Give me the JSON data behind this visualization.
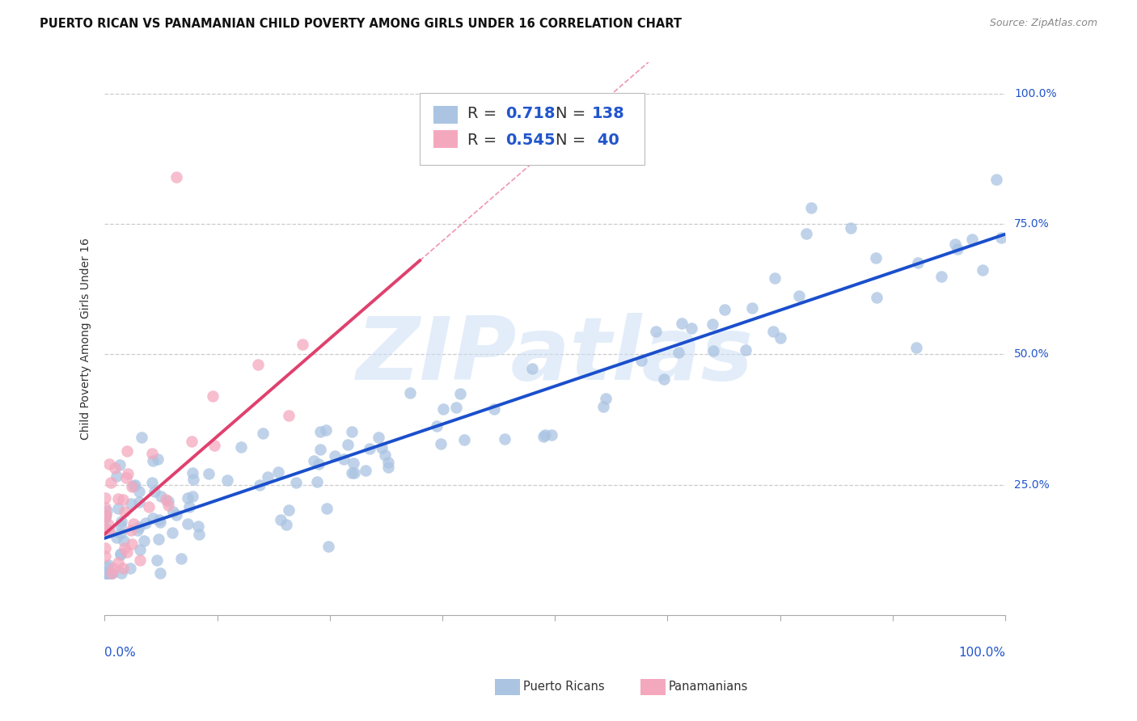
{
  "title": "PUERTO RICAN VS PANAMANIAN CHILD POVERTY AMONG GIRLS UNDER 16 CORRELATION CHART",
  "source": "Source: ZipAtlas.com",
  "ylabel": "Child Poverty Among Girls Under 16",
  "watermark": "ZIPatlas",
  "blue_R": 0.718,
  "blue_N": 138,
  "pink_R": 0.545,
  "pink_N": 40,
  "blue_color": "#aac4e2",
  "pink_color": "#f4a8be",
  "blue_line_color": "#1a4fcc",
  "pink_line_color": "#e0406e",
  "background_color": "#ffffff",
  "grid_color": "#cccccc",
  "title_fontsize": 11,
  "watermark_text": "ZIPatlas"
}
